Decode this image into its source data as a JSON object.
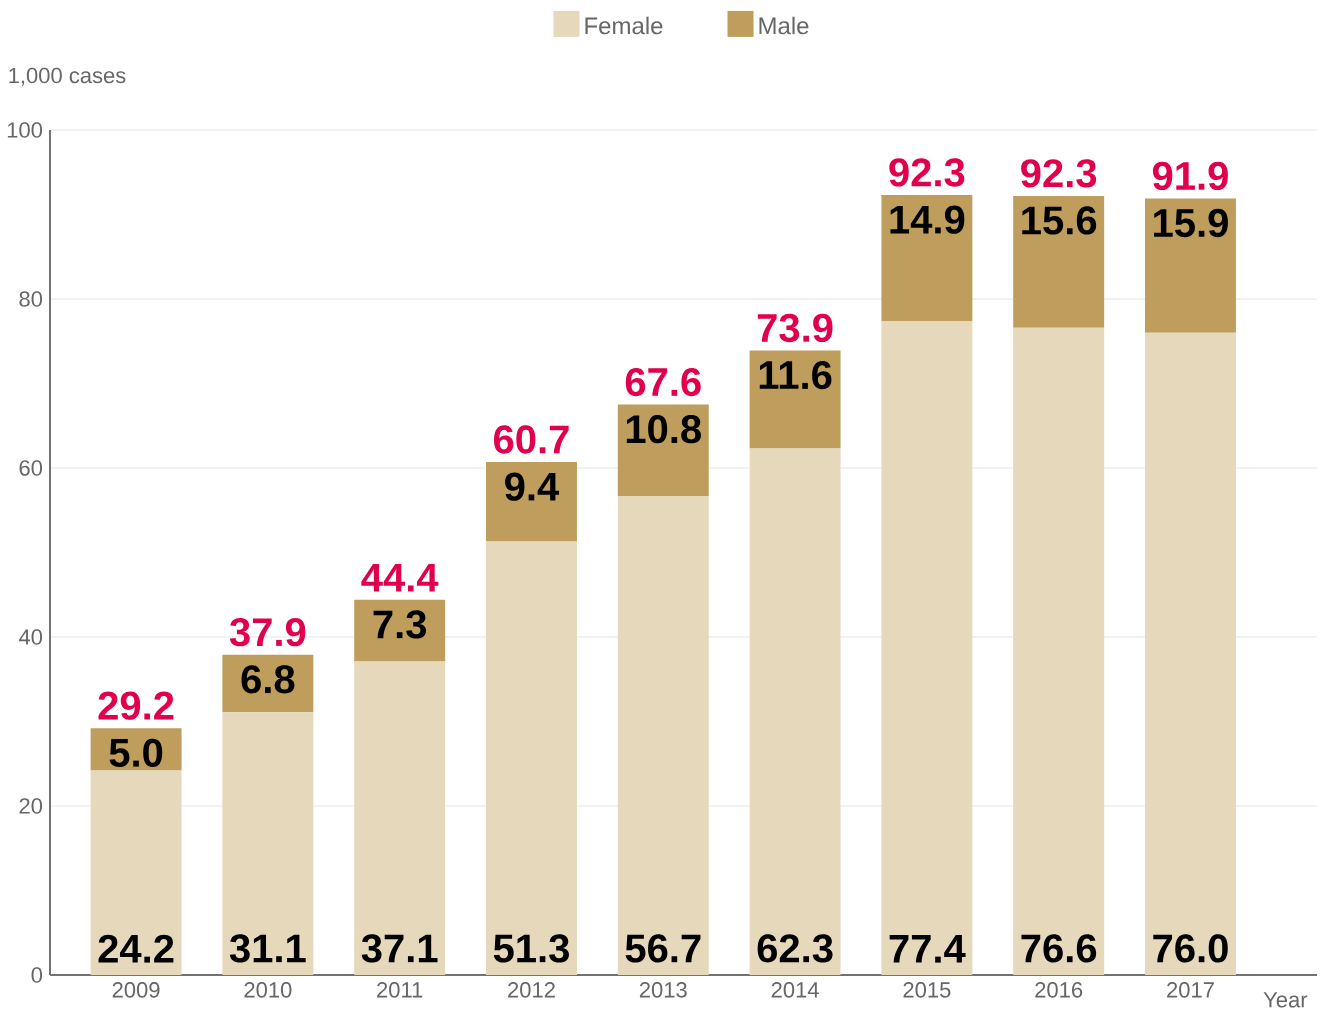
{
  "chart_data": {
    "type": "bar",
    "stacked": true,
    "xlabel": "Year",
    "ylabel": "1,000 cases",
    "categories": [
      "2009",
      "2010",
      "2011",
      "2012",
      "2013",
      "2014",
      "2015",
      "2016",
      "2017"
    ],
    "series": [
      {
        "name": "Female",
        "color": "#e5d8bb",
        "values": [
          24.2,
          31.1,
          37.1,
          51.3,
          56.7,
          62.3,
          77.4,
          76.6,
          76.0
        ],
        "value_labels": [
          "24.2",
          "31.1",
          "37.1",
          "51.3",
          "56.7",
          "62.3",
          "77.4",
          "76.6",
          "76.0"
        ]
      },
      {
        "name": "Male",
        "color": "#bf9d5c",
        "values": [
          5.0,
          6.8,
          7.3,
          9.4,
          10.8,
          11.6,
          14.9,
          15.6,
          15.9
        ],
        "value_labels": [
          "5.0",
          "6.8",
          "7.3",
          "9.4",
          "10.8",
          "11.6",
          "14.9",
          "15.6",
          "15.9"
        ]
      }
    ],
    "totals": [
      "29.2",
      "37.9",
      "44.4",
      "60.7",
      "67.6",
      "73.9",
      "92.3",
      "92.3",
      "91.9"
    ],
    "data_labels": true,
    "ylim": [
      0,
      100
    ],
    "yticks": [
      0,
      20,
      40,
      60,
      80,
      100
    ],
    "grid": "y",
    "legend": "top"
  }
}
